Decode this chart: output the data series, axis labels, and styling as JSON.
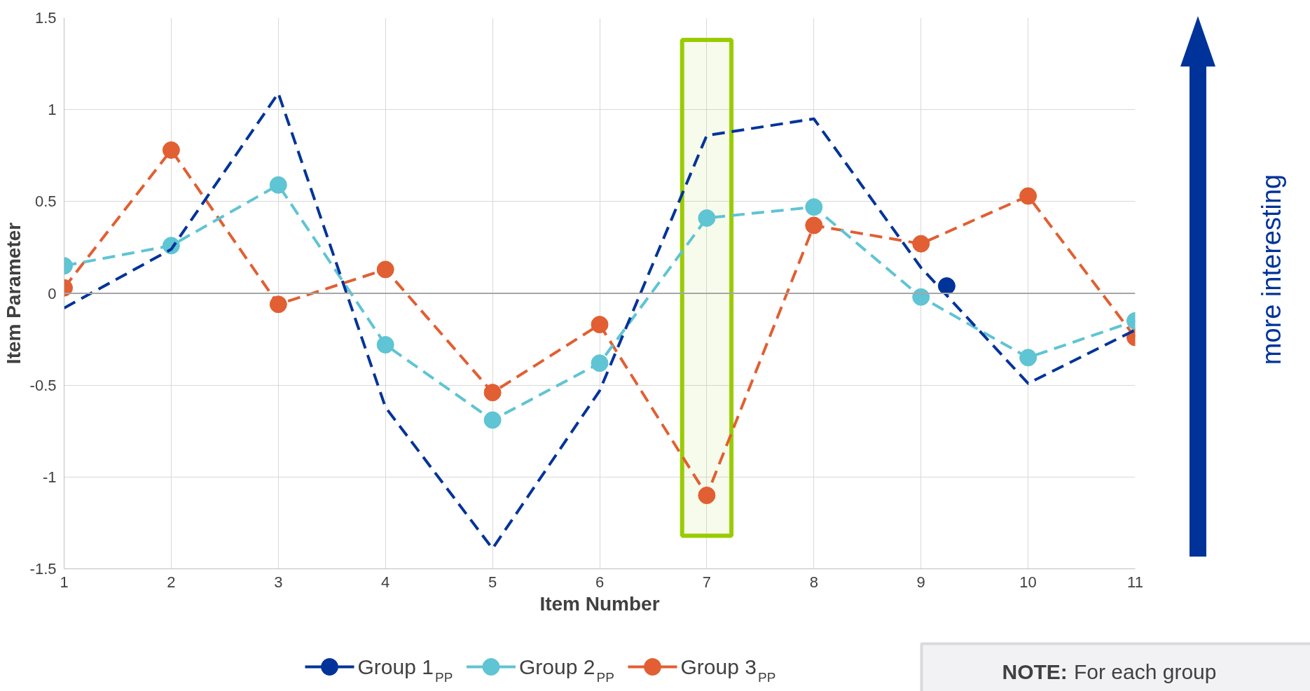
{
  "chart_data": {
    "type": "line",
    "xlabel": "Item Number",
    "ylabel": "Item Parameter",
    "x": [
      1,
      2,
      3,
      4,
      5,
      6,
      7,
      8,
      9,
      10,
      11
    ],
    "xlim": [
      1,
      11
    ],
    "xticks": [
      1,
      2,
      3,
      4,
      5,
      6,
      7,
      8,
      9,
      10,
      11
    ],
    "ylim": [
      -1.5,
      1.5
    ],
    "yticks": [
      -1.5,
      -1,
      -0.5,
      0,
      0.5,
      1,
      1.5
    ],
    "grid": true,
    "legend": "bottom",
    "line_style": "dashed",
    "marker": "circle",
    "series": [
      {
        "name": "Group 1$_{PP}$",
        "color": "#003399",
        "marker": "none",
        "values": [
          -0.08,
          0.24,
          1.09,
          -0.62,
          -1.39,
          -0.53,
          0.86,
          0.95,
          0.14,
          -0.49,
          -0.2
        ]
      },
      {
        "name": "Group 2$_{PP}$",
        "color": "#5fc4d3",
        "values": [
          0.15,
          0.26,
          0.59,
          -0.28,
          -0.69,
          -0.38,
          0.41,
          0.47,
          -0.02,
          -0.35,
          -0.15
        ]
      },
      {
        "name": "Group 3$_{PP}$",
        "color": "#e15f32",
        "values": [
          0.03,
          0.78,
          -0.06,
          0.13,
          -0.54,
          -0.17,
          -1.1,
          0.37,
          0.27,
          0.53,
          -0.24
        ]
      },
      {
        "type": "scatter",
        "color": "#003399",
        "x": [
          9.24
        ],
        "values": [
          0.04
        ]
      }
    ],
    "ref_lines": [
      {
        "axis": "y",
        "value": 0,
        "color": "#a6a6a6"
      }
    ],
    "bands": [
      {
        "axis": "x",
        "from": 6.77,
        "to": 7.23,
        "color": "#99cc00"
      }
    ],
    "annotations": [
      "more interesting",
      "NOTE: For each group"
    ]
  }
}
